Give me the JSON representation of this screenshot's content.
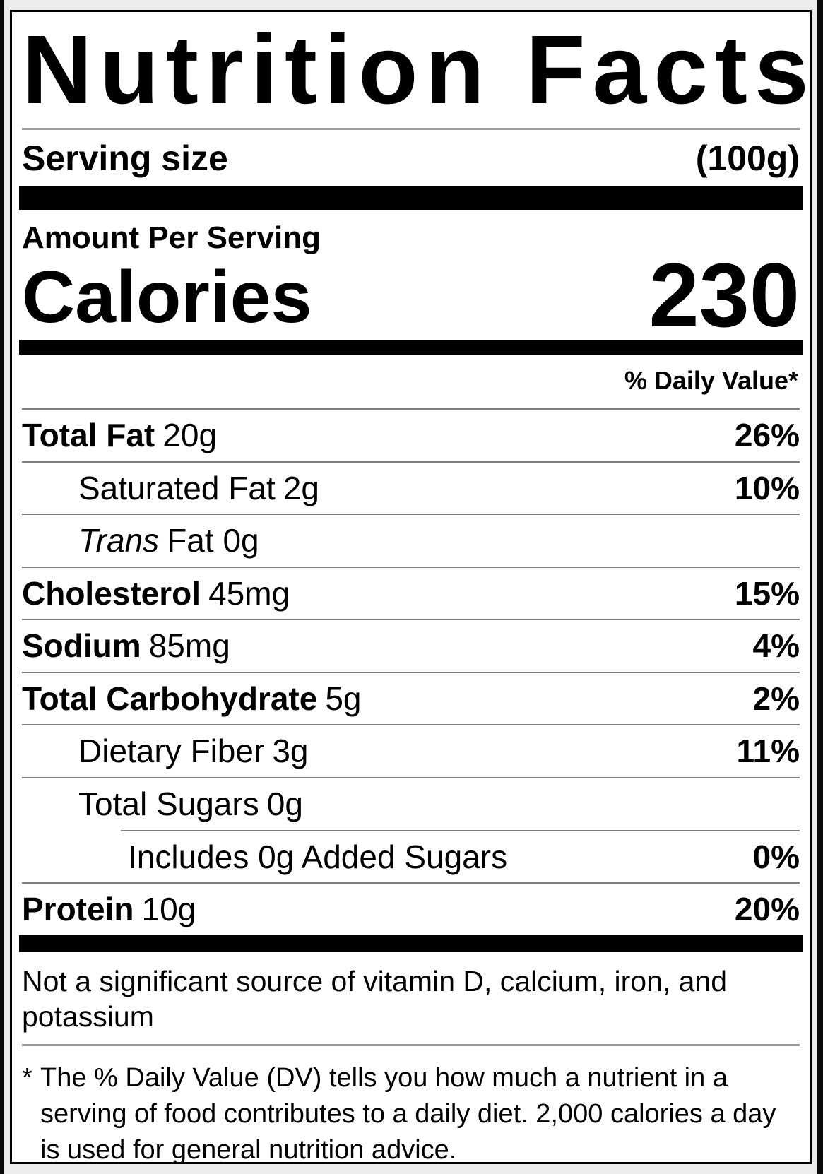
{
  "label": {
    "title": "Nutrition Facts",
    "serving": {
      "label": "Serving size",
      "value": "(100g)"
    },
    "amount_per_serving": "Amount Per Serving",
    "calories": {
      "label": "Calories",
      "value": "230"
    },
    "daily_value_header": "% Daily Value*",
    "rows": [
      {
        "name": "Total Fat",
        "amount": "20g",
        "dv": "26%",
        "name_style": "bold",
        "indent": 0,
        "divider_indent": false
      },
      {
        "name": "Saturated Fat",
        "amount": "2g",
        "dv": "10%",
        "name_style": "regular",
        "indent": 1,
        "divider_indent": false
      },
      {
        "name": "Trans",
        "amount": "Fat 0g",
        "dv": "",
        "name_style": "italic",
        "indent": 1,
        "divider_indent": false
      },
      {
        "name": "Cholesterol",
        "amount": "45mg",
        "dv": "15%",
        "name_style": "bold",
        "indent": 0,
        "divider_indent": false
      },
      {
        "name": "Sodium",
        "amount": "85mg",
        "dv": "4%",
        "name_style": "bold",
        "indent": 0,
        "divider_indent": false
      },
      {
        "name": "Total Carbohydrate",
        "amount": "5g",
        "dv": "2%",
        "name_style": "bold",
        "indent": 0,
        "divider_indent": false
      },
      {
        "name": "Dietary Fiber",
        "amount": "3g",
        "dv": "11%",
        "name_style": "regular",
        "indent": 1,
        "divider_indent": false
      },
      {
        "name": "Total Sugars",
        "amount": "0g",
        "dv": "",
        "name_style": "regular",
        "indent": 1,
        "divider_indent": false
      },
      {
        "name": "Includes 0g Added Sugars",
        "amount": "",
        "dv": "0%",
        "name_style": "regular",
        "indent": 2,
        "divider_indent": true
      },
      {
        "name": "Protein",
        "amount": "10g",
        "dv": "20%",
        "name_style": "bold",
        "indent": 0,
        "divider_indent": false
      }
    ],
    "not_significant": "Not a significant source of vitamin D, calcium, iron, and potassium",
    "footnote": {
      "marker": "*",
      "text": "The % Daily Value (DV) tells you how much a nutrient in a serving of food contributes to a daily diet. 2,000 calories a day is used for general nutrition advice."
    }
  },
  "colors": {
    "ink": "#000000",
    "thick_bar": "#000000",
    "row_divider": "#7e7e7e",
    "light_divider": "#9a9a9a",
    "page_background": "#ececec"
  }
}
